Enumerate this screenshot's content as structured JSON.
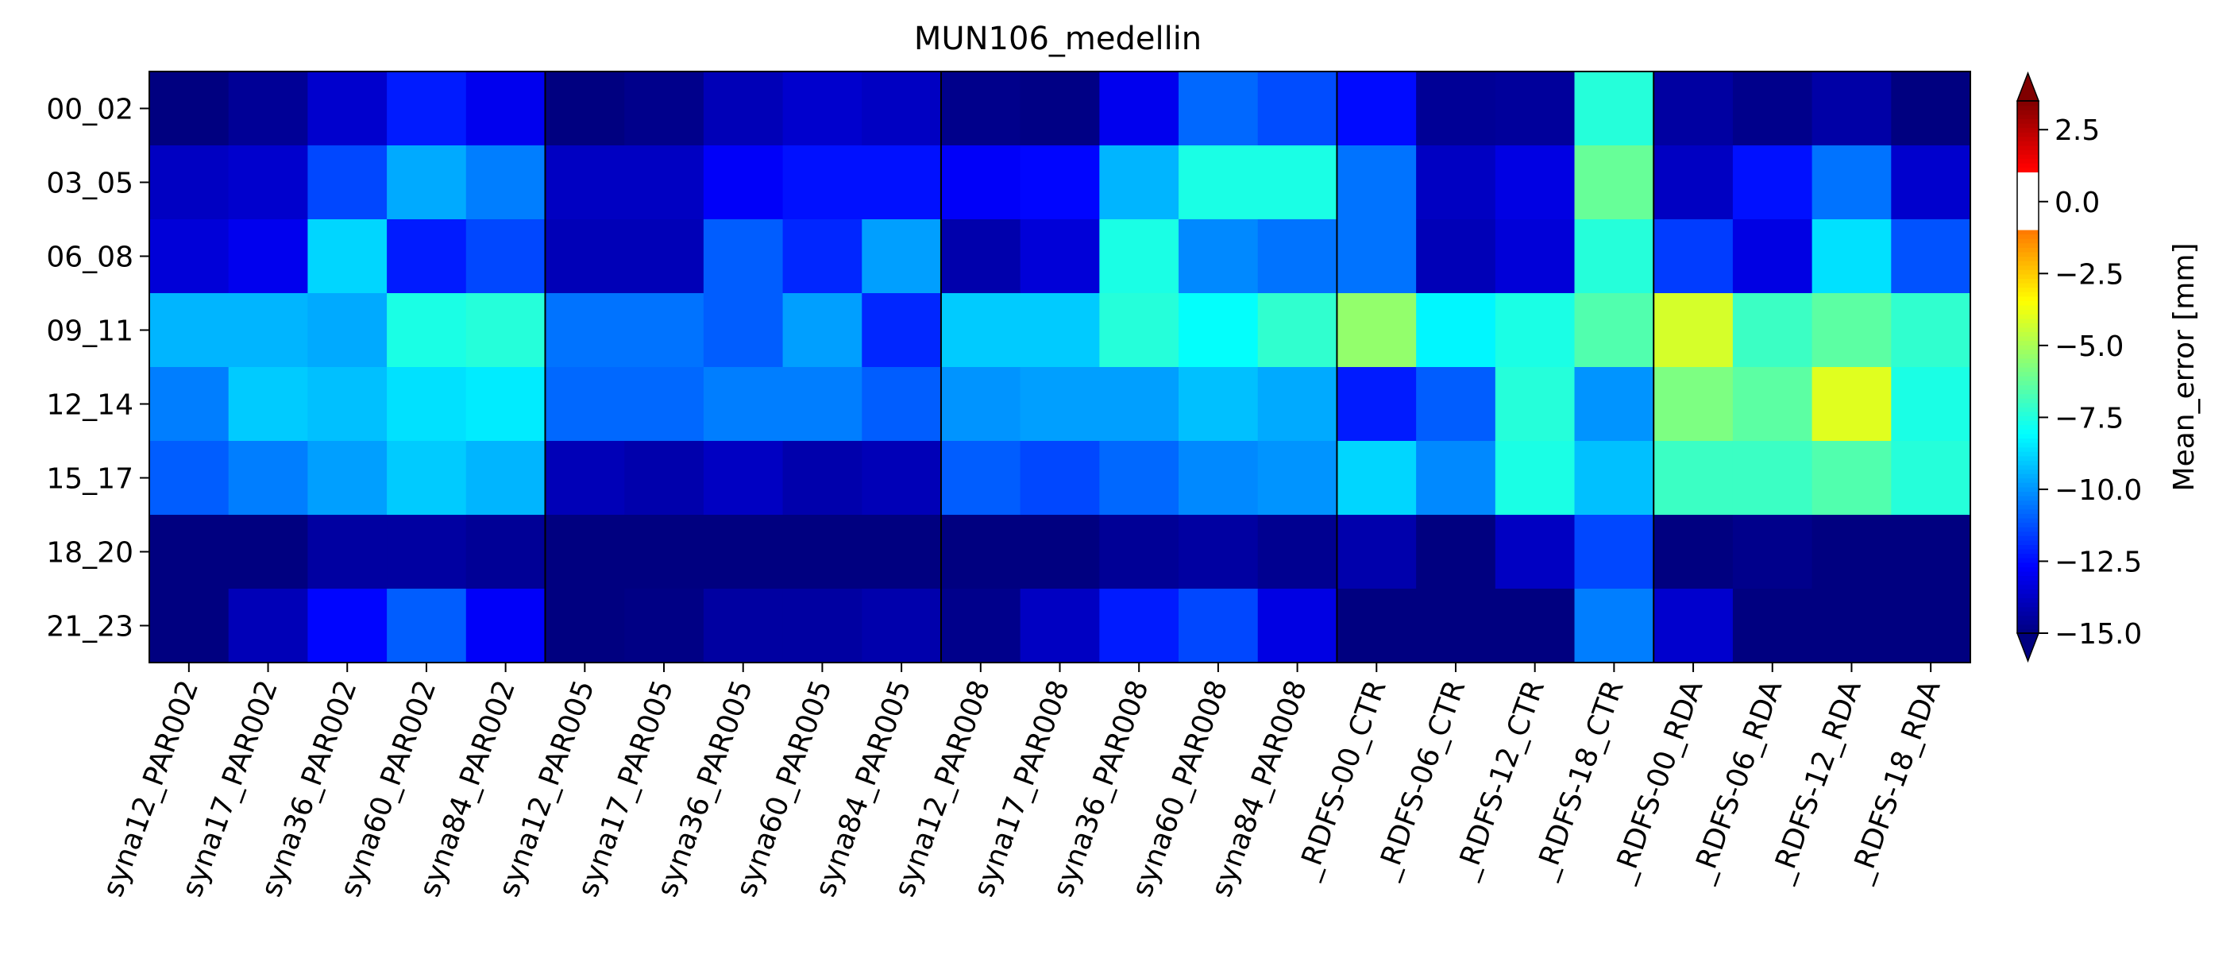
{
  "chart_data": {
    "type": "heatmap",
    "title": "MUN106_medellin",
    "x_categories": [
      "syna12_PAR002",
      "syna17_PAR002",
      "syna36_PAR002",
      "syna60_PAR002",
      "syna84_PAR002",
      "syna12_PAR005",
      "syna17_PAR005",
      "syna36_PAR005",
      "syna60_PAR005",
      "syna84_PAR005",
      "syna12_PAR008",
      "syna17_PAR008",
      "syna36_PAR008",
      "syna60_PAR008",
      "syna84_PAR008",
      "_RDFS-00_CTR",
      "_RDFS-06_CTR",
      "_RDFS-12_CTR",
      "_RDFS-18_CTR",
      "_RDFS-00_RDA",
      "_RDFS-06_RDA",
      "_RDFS-12_RDA",
      "_RDFS-18_RDA"
    ],
    "y_categories": [
      "00_02",
      "03_05",
      "06_08",
      "09_11",
      "12_14",
      "15_17",
      "18_20",
      "21_23"
    ],
    "values": [
      [
        -15.0,
        -14.6,
        -13.6,
        -12.2,
        -13.0,
        -15.0,
        -14.8,
        -14.0,
        -13.6,
        -13.8,
        -14.8,
        -14.9,
        -13.0,
        -10.8,
        -11.3,
        -12.5,
        -14.6,
        -14.5,
        -7.4,
        -14.4,
        -14.8,
        -14.3,
        -15.0
      ],
      [
        -13.8,
        -13.6,
        -11.4,
        -9.6,
        -10.4,
        -13.8,
        -13.8,
        -12.8,
        -12.4,
        -12.4,
        -12.8,
        -12.6,
        -9.4,
        -7.6,
        -7.6,
        -10.6,
        -13.8,
        -13.2,
        -6.2,
        -13.8,
        -12.4,
        -10.6,
        -13.6
      ],
      [
        -13.4,
        -13.0,
        -8.8,
        -12.2,
        -11.4,
        -14.0,
        -14.0,
        -11.0,
        -12.0,
        -9.8,
        -14.2,
        -13.4,
        -7.6,
        -10.2,
        -10.6,
        -10.6,
        -14.0,
        -13.4,
        -7.4,
        -11.6,
        -13.2,
        -8.6,
        -11.2
      ],
      [
        -9.4,
        -9.4,
        -9.6,
        -7.6,
        -7.4,
        -10.6,
        -10.6,
        -11.0,
        -9.8,
        -12.0,
        -9.0,
        -9.0,
        -7.4,
        -8.0,
        -7.2,
        -5.4,
        -8.2,
        -7.6,
        -6.6,
        -4.2,
        -7.0,
        -6.4,
        -7.2
      ],
      [
        -10.4,
        -9.0,
        -9.2,
        -8.6,
        -8.4,
        -10.8,
        -10.8,
        -10.4,
        -10.4,
        -11.0,
        -10.0,
        -9.8,
        -9.8,
        -9.2,
        -9.6,
        -12.2,
        -11.0,
        -7.4,
        -10.0,
        -5.8,
        -6.4,
        -4.0,
        -7.6
      ],
      [
        -11.0,
        -10.4,
        -9.8,
        -9.0,
        -9.4,
        -14.0,
        -14.2,
        -13.8,
        -14.2,
        -14.0,
        -11.0,
        -11.4,
        -10.8,
        -10.2,
        -10.0,
        -8.8,
        -10.2,
        -7.6,
        -9.2,
        -7.0,
        -7.0,
        -6.6,
        -7.4
      ],
      [
        -15.0,
        -15.0,
        -14.4,
        -14.4,
        -14.6,
        -15.0,
        -15.0,
        -15.0,
        -15.0,
        -15.0,
        -15.0,
        -15.0,
        -14.6,
        -14.4,
        -14.7,
        -14.2,
        -15.0,
        -13.8,
        -11.4,
        -15.0,
        -14.8,
        -15.0,
        -15.0
      ],
      [
        -15.0,
        -14.0,
        -12.6,
        -11.0,
        -12.8,
        -15.0,
        -14.9,
        -14.4,
        -14.4,
        -14.2,
        -14.8,
        -13.8,
        -12.2,
        -11.4,
        -13.2,
        -15.0,
        -15.0,
        -15.0,
        -10.4,
        -13.6,
        -15.0,
        -15.0,
        -15.0
      ]
    ],
    "group_boundaries_after_column": [
      4,
      9,
      14,
      18
    ],
    "colorbar": {
      "label": "Mean_error [mm]",
      "range": [
        -15.0,
        3.5
      ],
      "white_band": [
        -1.0,
        1.0
      ],
      "ticks": [
        2.5,
        0.0,
        -2.5,
        -5.0,
        -7.5,
        -10.0,
        -12.5,
        -15.0
      ],
      "tick_labels": [
        "2.5",
        "0.0",
        "−2.5",
        "−5.0",
        "−7.5",
        "−10.0",
        "−12.5",
        "−15.0"
      ],
      "extend": "both",
      "colormap": "jet"
    }
  }
}
